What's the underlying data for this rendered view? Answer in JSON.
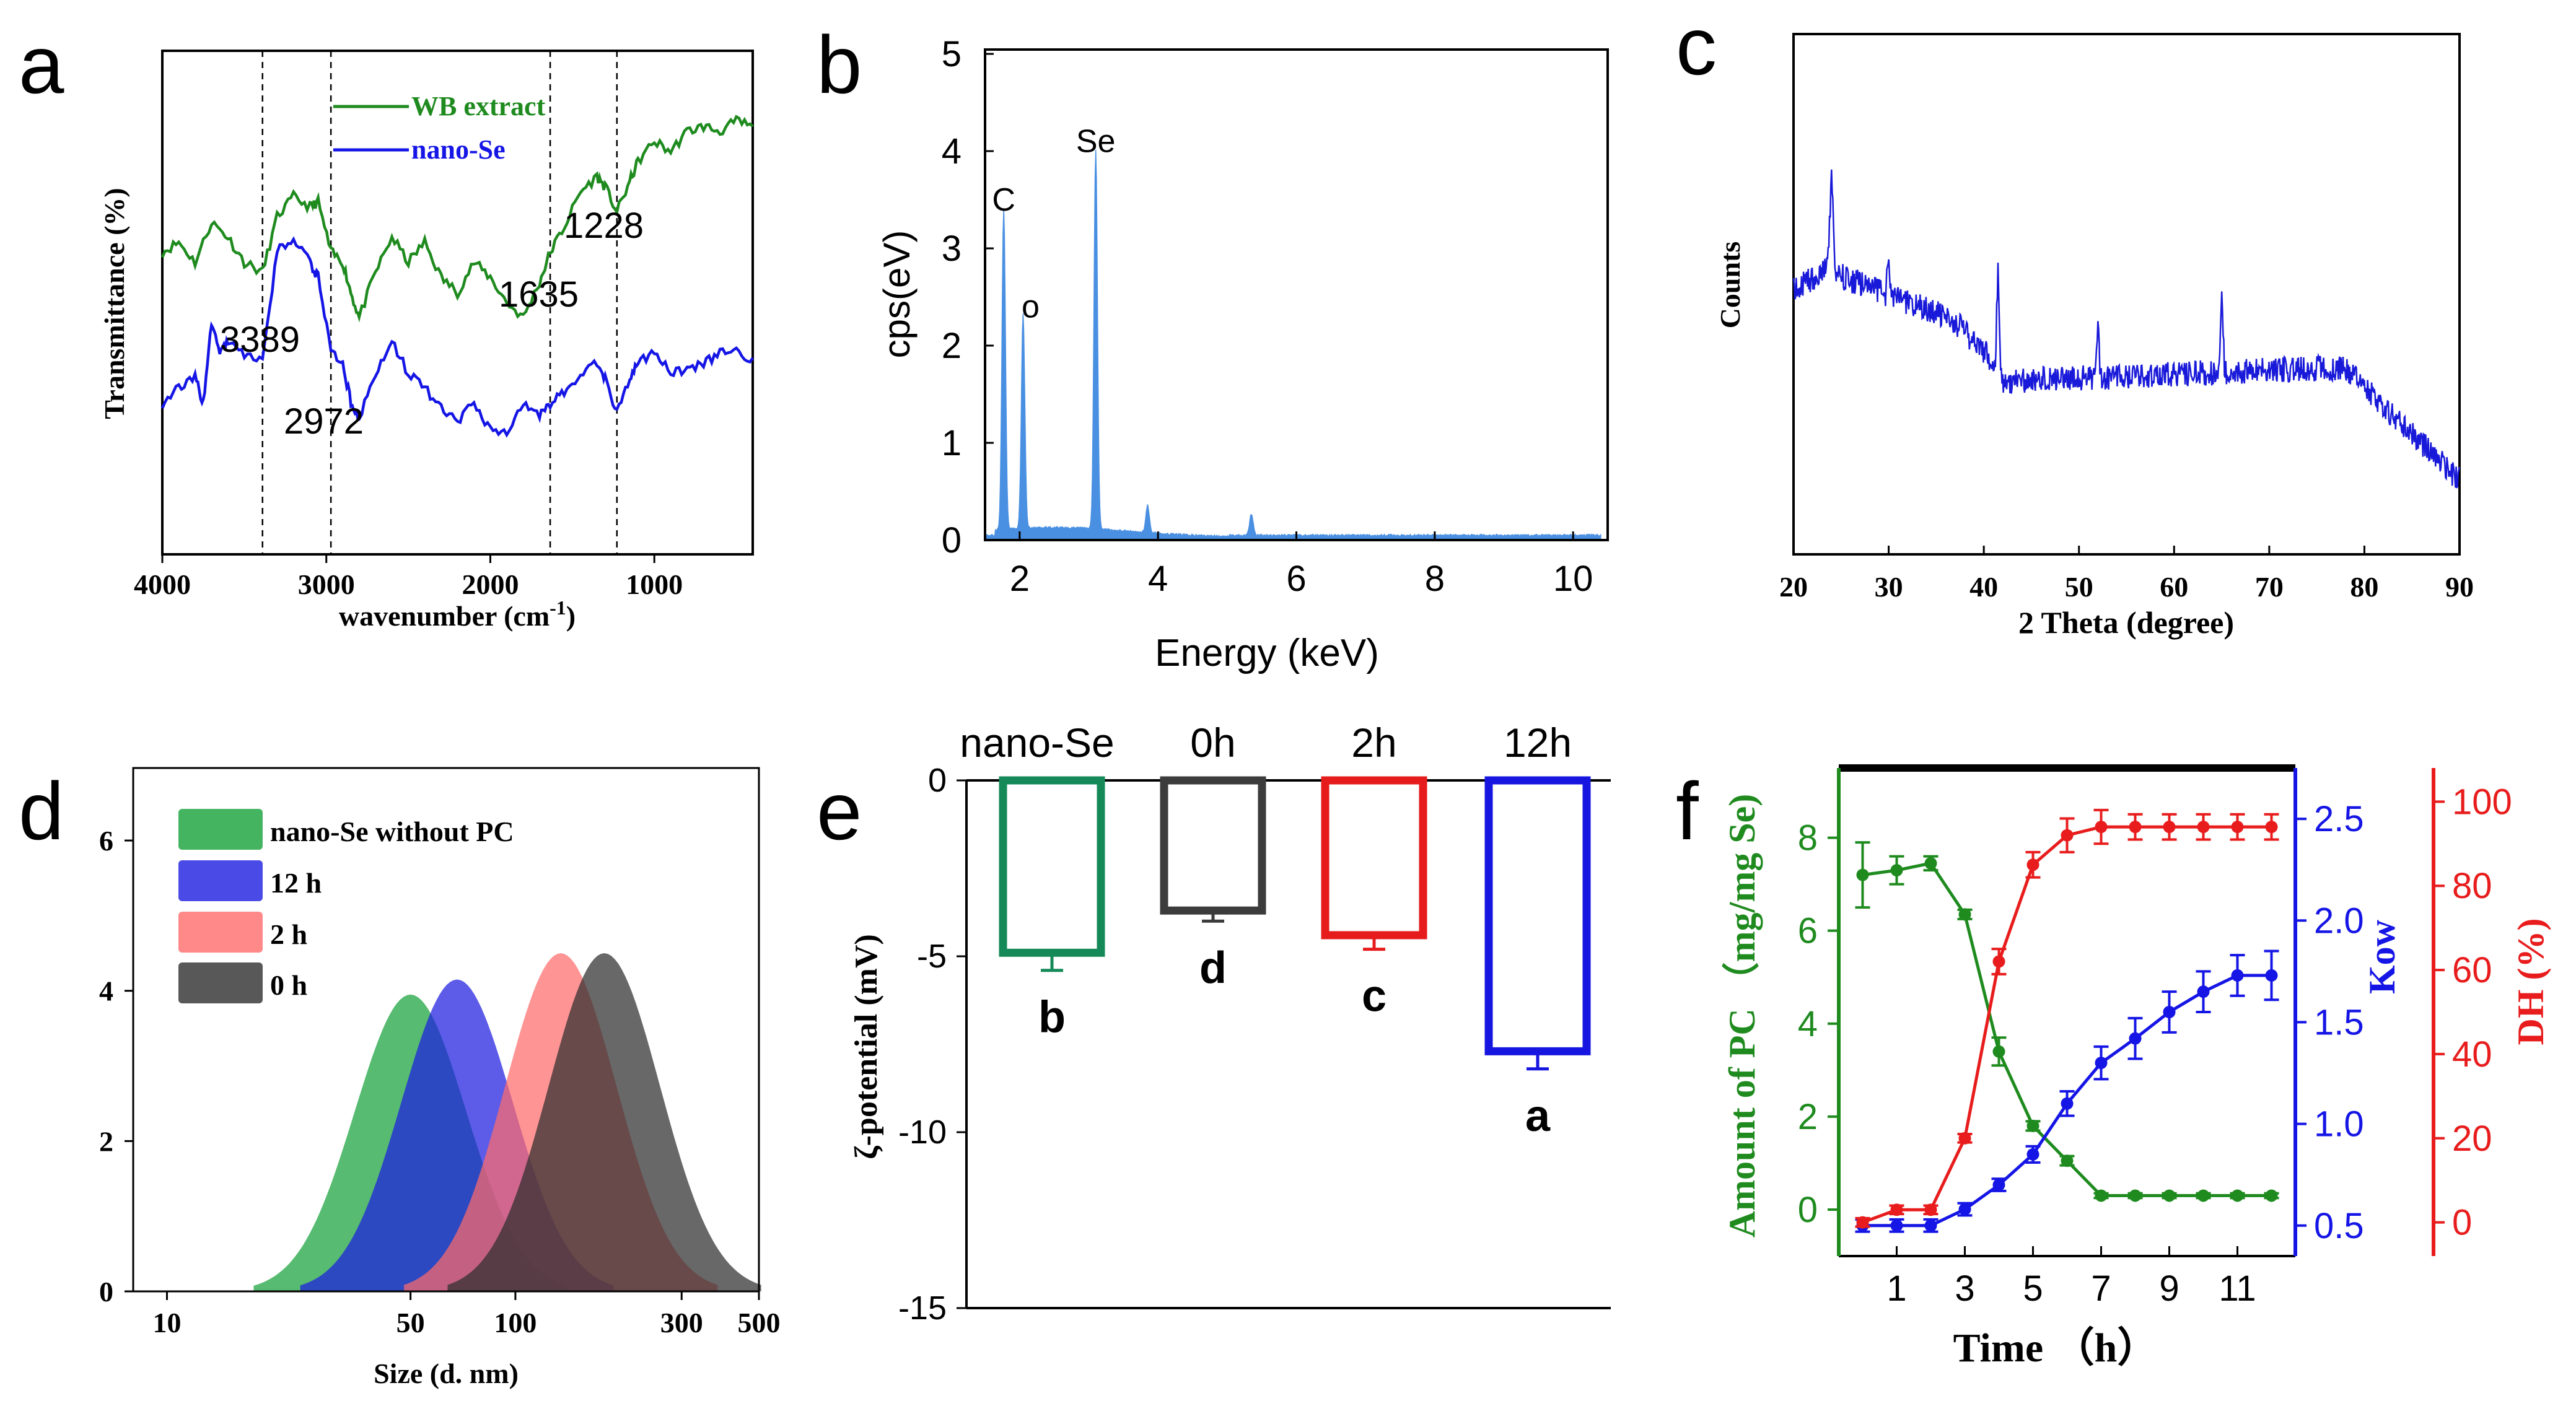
{
  "colors": {
    "green": "#1f8b1f",
    "blue": "#1515e6",
    "red": "#e81c1c",
    "edsBlue": "#4a90e2",
    "barGreen": "#158a58",
    "barGray": "#3c3c3c",
    "barRed": "#e61c1c",
    "barBlue": "#1616e0",
    "xrdBlue": "#1919d9"
  },
  "panel_letters": [
    "a",
    "b",
    "c",
    "d",
    "e",
    "f"
  ],
  "chart_data": [
    {
      "panel": "a",
      "type": "line",
      "xlabel": "wavenumber (cm",
      "xlabel_sup": "-1",
      "xlabel_tail": ")",
      "ylabel": "Transmittance (%)",
      "xlim": [
        4000,
        400
      ],
      "xticks": [
        "4000",
        "3000",
        "2000",
        "1000"
      ],
      "series": [
        {
          "name": "WB extract",
          "color": "#1f8b1f",
          "x": [
            4000,
            3900,
            3800,
            3700,
            3600,
            3500,
            3389,
            3300,
            3200,
            3100,
            3050,
            2972,
            2900,
            2850,
            2800,
            2700,
            2600,
            2500,
            2400,
            2300,
            2200,
            2100,
            2000,
            1900,
            1800,
            1700,
            1635,
            1550,
            1450,
            1350,
            1300,
            1228,
            1150,
            1100,
            1000,
            900,
            800,
            700,
            600,
            500,
            400
          ],
          "y": [
            0.6,
            0.62,
            0.58,
            0.66,
            0.63,
            0.58,
            0.56,
            0.67,
            0.71,
            0.69,
            0.7,
            0.6,
            0.58,
            0.52,
            0.47,
            0.56,
            0.63,
            0.58,
            0.62,
            0.55,
            0.52,
            0.58,
            0.55,
            0.5,
            0.47,
            0.54,
            0.6,
            0.65,
            0.72,
            0.75,
            0.73,
            0.68,
            0.74,
            0.78,
            0.82,
            0.8,
            0.84,
            0.85,
            0.84,
            0.86,
            0.85
          ]
        },
        {
          "name": "nano-Se",
          "color": "#1515e6",
          "x": [
            4000,
            3900,
            3800,
            3750,
            3700,
            3650,
            3600,
            3500,
            3389,
            3300,
            3200,
            3100,
            3050,
            2972,
            2900,
            2850,
            2800,
            2700,
            2600,
            2500,
            2400,
            2300,
            2200,
            2100,
            2000,
            1900,
            1800,
            1700,
            1635,
            1550,
            1450,
            1350,
            1300,
            1228,
            1150,
            1100,
            1000,
            900,
            800,
            700,
            600,
            500,
            400
          ],
          "y": [
            0.3,
            0.33,
            0.35,
            0.3,
            0.46,
            0.4,
            0.42,
            0.4,
            0.38,
            0.6,
            0.63,
            0.58,
            0.55,
            0.4,
            0.38,
            0.3,
            0.27,
            0.36,
            0.42,
            0.36,
            0.33,
            0.29,
            0.26,
            0.3,
            0.25,
            0.24,
            0.3,
            0.28,
            0.3,
            0.32,
            0.36,
            0.38,
            0.35,
            0.28,
            0.35,
            0.38,
            0.4,
            0.36,
            0.37,
            0.38,
            0.4,
            0.4,
            0.39
          ]
        }
      ],
      "vlines": [
        3389,
        2972,
        1635,
        1228
      ],
      "annotations": [
        "3389",
        "2972",
        "1635",
        "1228"
      ]
    },
    {
      "panel": "b",
      "type": "area",
      "xlabel": "Energy (keV)",
      "ylabel": "cps(eV)",
      "xlim": [
        1.5,
        10.5
      ],
      "ylim": [
        0,
        5
      ],
      "xticks": [
        "2",
        "4",
        "6",
        "8",
        "10"
      ],
      "yticks": [
        "0",
        "1",
        "2",
        "3",
        "4",
        "5"
      ],
      "peaks": [
        {
          "label": "C",
          "x": 1.77,
          "y": 3.3
        },
        {
          "label": "o",
          "x": 2.05,
          "y": 2.2
        },
        {
          "label": "Se",
          "x": 3.1,
          "y": 3.9
        }
      ],
      "minor_peaks": [
        {
          "x": 3.85,
          "y": 0.28
        },
        {
          "x": 5.35,
          "y": 0.22
        }
      ]
    },
    {
      "panel": "c",
      "type": "line",
      "xlabel": "2 Theta (degree)",
      "ylabel": "Counts",
      "xlim": [
        20,
        90
      ],
      "xticks": [
        "20",
        "30",
        "40",
        "50",
        "60",
        "70",
        "80",
        "90"
      ],
      "peaks": [
        24,
        30,
        41,
        52,
        65
      ],
      "color": "#1919d9"
    },
    {
      "panel": "d",
      "type": "area",
      "xlabel": "Size (d. nm)",
      "xscale": "log",
      "xlim": [
        8,
        500
      ],
      "ylim": [
        0,
        6.8
      ],
      "xticks": [
        "10",
        "50",
        "100",
        "300",
        "500"
      ],
      "yticks": [
        "0",
        "2",
        "4",
        "6"
      ],
      "series": [
        {
          "name": "nano-Se without PC",
          "color": "#16a13a",
          "peak_size": 50,
          "height": 3.95
        },
        {
          "name": "12 h",
          "color": "#1d1de0",
          "peak_size": 68,
          "height": 4.15
        },
        {
          "name": "2 h",
          "color": "#ff6b6b",
          "peak_size": 135,
          "height": 4.5
        },
        {
          "name": "0 h",
          "color": "#2e2e2e",
          "peak_size": 180,
          "height": 4.5
        }
      ]
    },
    {
      "panel": "e",
      "type": "bar",
      "ylabel": "ζ-potential (mV)",
      "ylim": [
        -15,
        0
      ],
      "yticks": [
        "0",
        "-5",
        "-10",
        "-15"
      ],
      "categories": [
        "nano-Se",
        "0h",
        "2h",
        "12h"
      ],
      "values": [
        -4.9,
        -3.7,
        -4.4,
        -7.7
      ],
      "errors": [
        0.5,
        0.3,
        0.4,
        0.5
      ],
      "letters": [
        "b",
        "d",
        "c",
        "a"
      ]
    },
    {
      "panel": "f",
      "type": "line",
      "xlabel": "Time （h）",
      "xticks": [
        "1",
        "3",
        "5",
        "7",
        "9",
        "11"
      ],
      "xlim": [
        -0.7,
        12.7
      ],
      "axes": [
        {
          "label": "Amount of PC （mg/mg Se)",
          "color": "#1f8b1f",
          "ylim": [
            -1,
            9.5
          ],
          "ticks": [
            "0",
            "2",
            "4",
            "6",
            "8"
          ]
        },
        {
          "label": "Kow",
          "color": "#1515e6",
          "ylim": [
            0.35,
            2.75
          ],
          "ticks": [
            "0.5",
            "1.0",
            "1.5",
            "2.0",
            "2.5"
          ]
        },
        {
          "label": "DH (%)",
          "color": "#e81c1c",
          "ylim": [
            -8,
            108
          ],
          "ticks": [
            "0",
            "20",
            "40",
            "60",
            "80",
            "100"
          ]
        }
      ],
      "series": [
        {
          "axis": 0,
          "color": "#1f8b1f",
          "x": [
            0,
            1,
            2,
            3,
            4,
            5,
            6,
            7,
            8,
            9,
            10,
            11,
            12
          ],
          "y": [
            7.2,
            7.3,
            7.45,
            6.35,
            3.4,
            1.8,
            1.05,
            0.3,
            0.3,
            0.3,
            0.3,
            0.3,
            0.3
          ],
          "err": [
            0.7,
            0.3,
            0.15,
            0.1,
            0.3,
            0.1,
            0.1,
            0.05,
            0.05,
            0.05,
            0.05,
            0.05,
            0.05
          ]
        },
        {
          "axis": 1,
          "x": [
            0,
            1,
            2,
            3,
            4,
            5,
            6,
            7,
            8,
            9,
            10,
            11,
            12
          ],
          "y": [
            0.5,
            0.5,
            0.5,
            0.58,
            0.7,
            0.85,
            1.1,
            1.3,
            1.42,
            1.55,
            1.65,
            1.73,
            1.73
          ],
          "err": [
            0.03,
            0.03,
            0.03,
            0.03,
            0.03,
            0.04,
            0.06,
            0.08,
            0.1,
            0.1,
            0.1,
            0.1,
            0.12
          ],
          "color": "#1515e6"
        },
        {
          "axis": 2,
          "color": "#e81c1c",
          "x": [
            0,
            1,
            2,
            3,
            4,
            5,
            6,
            7,
            8,
            9,
            10,
            11,
            12
          ],
          "y": [
            0,
            3,
            3,
            20,
            62,
            85,
            92,
            94,
            94,
            94,
            94,
            94,
            94
          ],
          "err": [
            1,
            1,
            1,
            1,
            3,
            3,
            4,
            4,
            3,
            3,
            3,
            3,
            3
          ]
        }
      ]
    }
  ]
}
